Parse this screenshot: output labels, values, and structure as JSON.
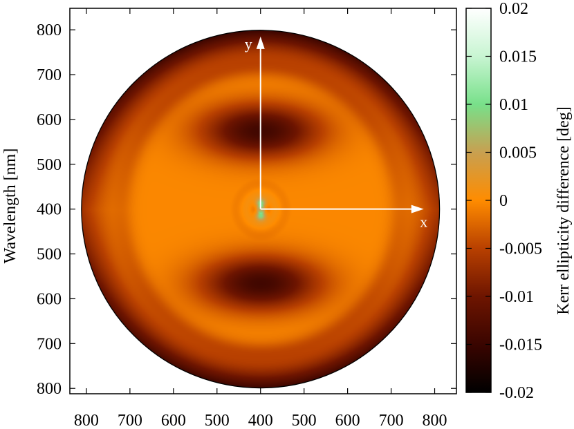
{
  "chart_data": {
    "type": "heatmap",
    "title": "",
    "xlabel": "",
    "ylabel": "Wavelength [nm]",
    "colorbar": {
      "label": "Kerr ellipticity difference [deg]",
      "range": [
        -0.02,
        0.02
      ],
      "ticks": [
        "0.02",
        "0.015",
        "0.01",
        "0.005",
        "0",
        "-0.005",
        "-0.01",
        "-0.015",
        "-0.02"
      ],
      "tick_values": [
        0.02,
        0.015,
        0.01,
        0.005,
        0,
        -0.005,
        -0.01,
        -0.015,
        -0.02
      ],
      "colormap": [
        {
          "v": -0.02,
          "color": "#000000"
        },
        {
          "v": -0.015,
          "color": "#3a0500"
        },
        {
          "v": -0.01,
          "color": "#6e1500"
        },
        {
          "v": -0.005,
          "color": "#b84000"
        },
        {
          "v": 0,
          "color": "#ff8c00"
        },
        {
          "v": 0.005,
          "color": "#c8a050"
        },
        {
          "v": 0.01,
          "color": "#78e08a"
        },
        {
          "v": 0.015,
          "color": "#c8f5d2"
        },
        {
          "v": 0.02,
          "color": "#ffffff"
        }
      ]
    },
    "x_ticks": [
      "800",
      "700",
      "600",
      "500",
      "400",
      "500",
      "600",
      "700",
      "800"
    ],
    "x_tick_values": [
      -400,
      -300,
      -200,
      -100,
      0,
      100,
      200,
      300,
      400
    ],
    "y_ticks": [
      "800",
      "700",
      "600",
      "500",
      "400",
      "500",
      "600",
      "700",
      "800"
    ],
    "y_tick_values": [
      400,
      300,
      200,
      100,
      0,
      -100,
      -200,
      -300,
      -400
    ],
    "xlim": [
      -438,
      450
    ],
    "ylim": [
      -412,
      448
    ],
    "disk_radius": 405,
    "background_value": -0.0003,
    "features": [
      {
        "kind": "dark_arc",
        "center": [
          0,
          175
        ],
        "value": -0.014
      },
      {
        "kind": "dark_arc",
        "center": [
          0,
          -165
        ],
        "value": -0.014
      },
      {
        "kind": "dark_rim",
        "value": -0.016
      },
      {
        "kind": "green_spot",
        "center": [
          0,
          13
        ],
        "value": 0.012
      },
      {
        "kind": "green_spot",
        "center": [
          0,
          -13
        ],
        "value": 0.012
      }
    ],
    "annotations": [
      {
        "label": "y",
        "direction": "up"
      },
      {
        "label": "x",
        "direction": "right"
      }
    ]
  }
}
